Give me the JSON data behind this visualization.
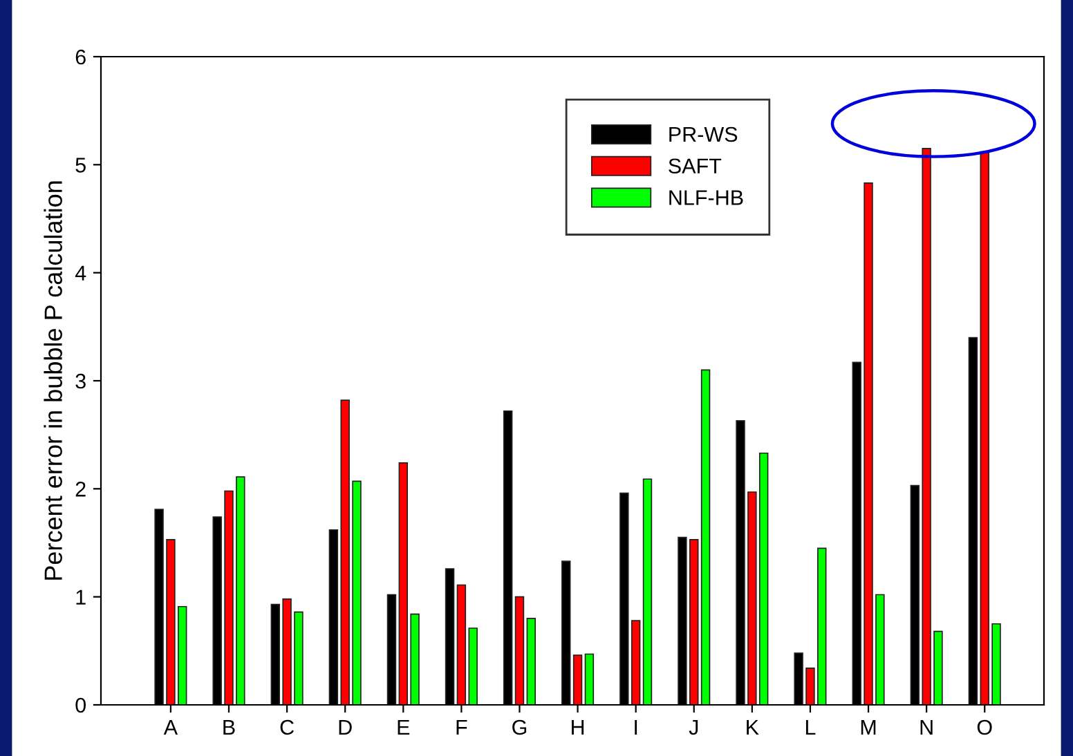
{
  "chart_data": {
    "type": "bar",
    "ylabel": "Percent error in bubble P calculation",
    "categories": [
      "A",
      "B",
      "C",
      "D",
      "E",
      "F",
      "G",
      "H",
      "I",
      "J",
      "K",
      "L",
      "M",
      "N",
      "O"
    ],
    "series": [
      {
        "name": "PR-WS",
        "color": "#000000",
        "values": [
          1.81,
          1.74,
          0.93,
          1.62,
          1.02,
          1.26,
          2.72,
          1.33,
          1.96,
          1.55,
          2.63,
          0.48,
          3.17,
          2.03,
          3.4
        ]
      },
      {
        "name": "SAFT",
        "color": "#ff0000",
        "values": [
          1.53,
          1.98,
          0.98,
          2.82,
          2.24,
          1.11,
          1.0,
          0.46,
          0.78,
          1.53,
          1.97,
          0.34,
          4.83,
          5.15,
          5.12
        ]
      },
      {
        "name": "NLF-HB",
        "color": "#00ff00",
        "values": [
          0.91,
          2.11,
          0.86,
          2.07,
          0.84,
          0.71,
          0.8,
          0.47,
          2.09,
          3.1,
          2.33,
          1.45,
          1.02,
          0.68,
          0.75
        ]
      }
    ],
    "ylim": [
      0,
      6
    ],
    "yticks": [
      0,
      1,
      2,
      3,
      4,
      5,
      6
    ],
    "grid": false,
    "legend": "top right"
  }
}
